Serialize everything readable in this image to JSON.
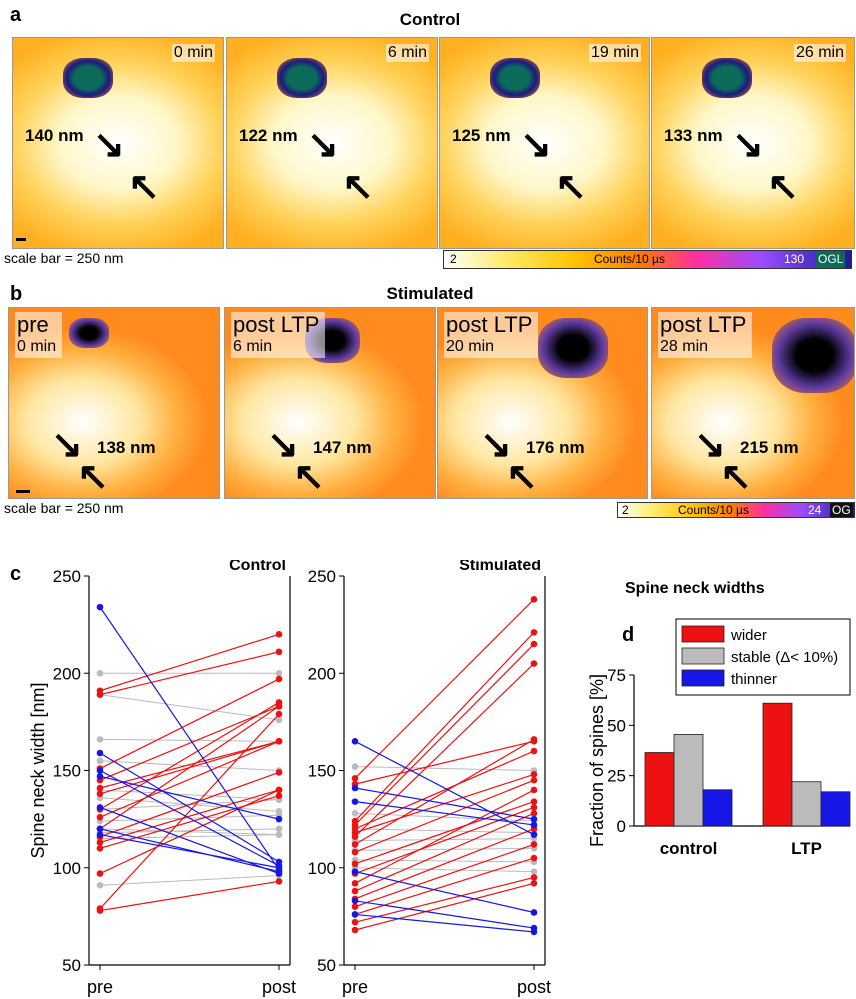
{
  "panel_a": {
    "letter": "a",
    "title": "Control",
    "times": [
      "0 min",
      "6 min",
      "19 min",
      "26 min"
    ],
    "measurements": [
      "140 nm",
      "122 nm",
      "125 nm",
      "133 nm"
    ],
    "scale_bar": "scale bar = 250 nm",
    "colorbar": {
      "min": "2",
      "label": "Counts/10 µs",
      "max": "130",
      "ogl": "OGL"
    }
  },
  "panel_b": {
    "letter": "b",
    "title": "Stimulated",
    "conditions": [
      "pre",
      "post LTP",
      "post LTP",
      "post LTP"
    ],
    "times": [
      "0 min",
      "6 min",
      "20 min",
      "28 min"
    ],
    "measurements": [
      "138 nm",
      "147 nm",
      "176 nm",
      "215 nm"
    ],
    "scale_bar": "scale bar = 250 nm",
    "colorbar": {
      "min": "2",
      "label": "Counts/10 µs",
      "max": "24",
      "ogl": "OG"
    }
  },
  "panel_c": {
    "letter": "c",
    "ylabel": "Spine neck width [nm]",
    "xticks": [
      "pre",
      "post"
    ],
    "yticks": [
      "50",
      "100",
      "150",
      "200",
      "250"
    ]
  },
  "panel_d": {
    "letter": "d",
    "title": "Spine neck widths",
    "ylabel": "Fraction of spines [%]",
    "yticks": [
      "0",
      "25",
      "50",
      "75"
    ],
    "legend": [
      "wider",
      "stable (Δ< 10%)",
      "thinner"
    ]
  },
  "colors": {
    "wider": "#ee1111",
    "stable": "#bbbbbb",
    "thinner": "#1616e6"
  },
  "chart_data": [
    {
      "type": "line",
      "title": "Control",
      "ylabel": "Spine neck width [nm]",
      "x": [
        "pre",
        "post"
      ],
      "ylim": [
        50,
        250
      ],
      "series": [
        {
          "group": "thinner",
          "values": [
            234,
            99
          ]
        },
        {
          "group": "thinner",
          "values": [
            159,
            103
          ]
        },
        {
          "group": "thinner",
          "values": [
            150,
            101
          ]
        },
        {
          "group": "thinner",
          "values": [
            147,
            125
          ]
        },
        {
          "group": "thinner",
          "values": [
            131,
            97
          ]
        },
        {
          "group": "thinner",
          "values": [
            120,
            98
          ]
        },
        {
          "group": "thinner",
          "values": [
            117,
            100
          ]
        },
        {
          "group": "stable",
          "values": [
            200,
            200
          ]
        },
        {
          "group": "stable",
          "values": [
            189,
            176
          ]
        },
        {
          "group": "stable",
          "values": [
            166,
            165
          ]
        },
        {
          "group": "stable",
          "values": [
            155,
            150
          ]
        },
        {
          "group": "stable",
          "values": [
            140,
            135
          ]
        },
        {
          "group": "stable",
          "values": [
            136,
            129
          ]
        },
        {
          "group": "stable",
          "values": [
            130,
            135
          ]
        },
        {
          "group": "stable",
          "values": [
            124,
            127
          ]
        },
        {
          "group": "stable",
          "values": [
            120,
            117
          ]
        },
        {
          "group": "stable",
          "values": [
            118,
            120
          ]
        },
        {
          "group": "stable",
          "values": [
            115,
            117
          ]
        },
        {
          "group": "stable",
          "values": [
            91,
            96
          ]
        },
        {
          "group": "wider",
          "values": [
            191,
            220
          ]
        },
        {
          "group": "wider",
          "values": [
            189,
            211
          ]
        },
        {
          "group": "wider",
          "values": [
            151,
            197
          ]
        },
        {
          "group": "wider",
          "values": [
            145,
            183
          ]
        },
        {
          "group": "wider",
          "values": [
            141,
            165
          ]
        },
        {
          "group": "wider",
          "values": [
            138,
            165
          ]
        },
        {
          "group": "wider",
          "values": [
            130,
            185
          ]
        },
        {
          "group": "wider",
          "values": [
            126,
            165
          ]
        },
        {
          "group": "wider",
          "values": [
            120,
            183
          ]
        },
        {
          "group": "wider",
          "values": [
            116,
            149
          ]
        },
        {
          "group": "wider",
          "values": [
            113,
            140
          ]
        },
        {
          "group": "wider",
          "values": [
            110,
            137
          ]
        },
        {
          "group": "wider",
          "values": [
            97,
            140
          ]
        },
        {
          "group": "wider",
          "values": [
            79,
            179
          ]
        },
        {
          "group": "wider",
          "values": [
            78,
            93
          ]
        }
      ]
    },
    {
      "type": "line",
      "title": "Stimulated",
      "x": [
        "pre",
        "post"
      ],
      "ylim": [
        50,
        250
      ],
      "series": [
        {
          "group": "thinner",
          "values": [
            165,
            117
          ]
        },
        {
          "group": "thinner",
          "values": [
            141,
            125
          ]
        },
        {
          "group": "thinner",
          "values": [
            134,
            122
          ]
        },
        {
          "group": "thinner",
          "values": [
            98,
            77
          ]
        },
        {
          "group": "thinner",
          "values": [
            83,
            69
          ]
        },
        {
          "group": "thinner",
          "values": [
            76,
            67
          ]
        },
        {
          "group": "stable",
          "values": [
            152,
            150
          ]
        },
        {
          "group": "stable",
          "values": [
            128,
            124
          ]
        },
        {
          "group": "stable",
          "values": [
            120,
            118
          ]
        },
        {
          "group": "stable",
          "values": [
            114,
            115
          ]
        },
        {
          "group": "stable",
          "values": [
            109,
            110
          ]
        },
        {
          "group": "stable",
          "values": [
            104,
            103
          ]
        },
        {
          "group": "stable",
          "values": [
            100,
            98
          ]
        },
        {
          "group": "wider",
          "values": [
            146,
            238
          ]
        },
        {
          "group": "wider",
          "values": [
            143,
            165
          ]
        },
        {
          "group": "wider",
          "values": [
            124,
            221
          ]
        },
        {
          "group": "wider",
          "values": [
            122,
            215
          ]
        },
        {
          "group": "wider",
          "values": [
            120,
            160
          ]
        },
        {
          "group": "wider",
          "values": [
            118,
            148
          ]
        },
        {
          "group": "wider",
          "values": [
            116,
            205
          ]
        },
        {
          "group": "wider",
          "values": [
            112,
            166
          ]
        },
        {
          "group": "wider",
          "values": [
            108,
            145
          ]
        },
        {
          "group": "wider",
          "values": [
            102,
            134
          ]
        },
        {
          "group": "wider",
          "values": [
            97,
            131
          ]
        },
        {
          "group": "wider",
          "values": [
            92,
            140
          ]
        },
        {
          "group": "wider",
          "values": [
            88,
            128
          ]
        },
        {
          "group": "wider",
          "values": [
            84,
            120
          ]
        },
        {
          "group": "wider",
          "values": [
            80,
            112
          ]
        },
        {
          "group": "wider",
          "values": [
            76,
            105
          ]
        },
        {
          "group": "wider",
          "values": [
            72,
            95
          ]
        },
        {
          "group": "wider",
          "values": [
            68,
            92
          ]
        }
      ]
    },
    {
      "type": "bar",
      "title": "Spine neck widths",
      "ylabel": "Fraction of spines [%]",
      "categories": [
        "control",
        "LTP"
      ],
      "ylim": [
        0,
        75
      ],
      "series": [
        {
          "name": "wider",
          "values": [
            36.5,
            61
          ]
        },
        {
          "name": "stable (Δ< 10%)",
          "values": [
            45.5,
            22
          ]
        },
        {
          "name": "thinner",
          "values": [
            18,
            17
          ]
        }
      ]
    }
  ]
}
